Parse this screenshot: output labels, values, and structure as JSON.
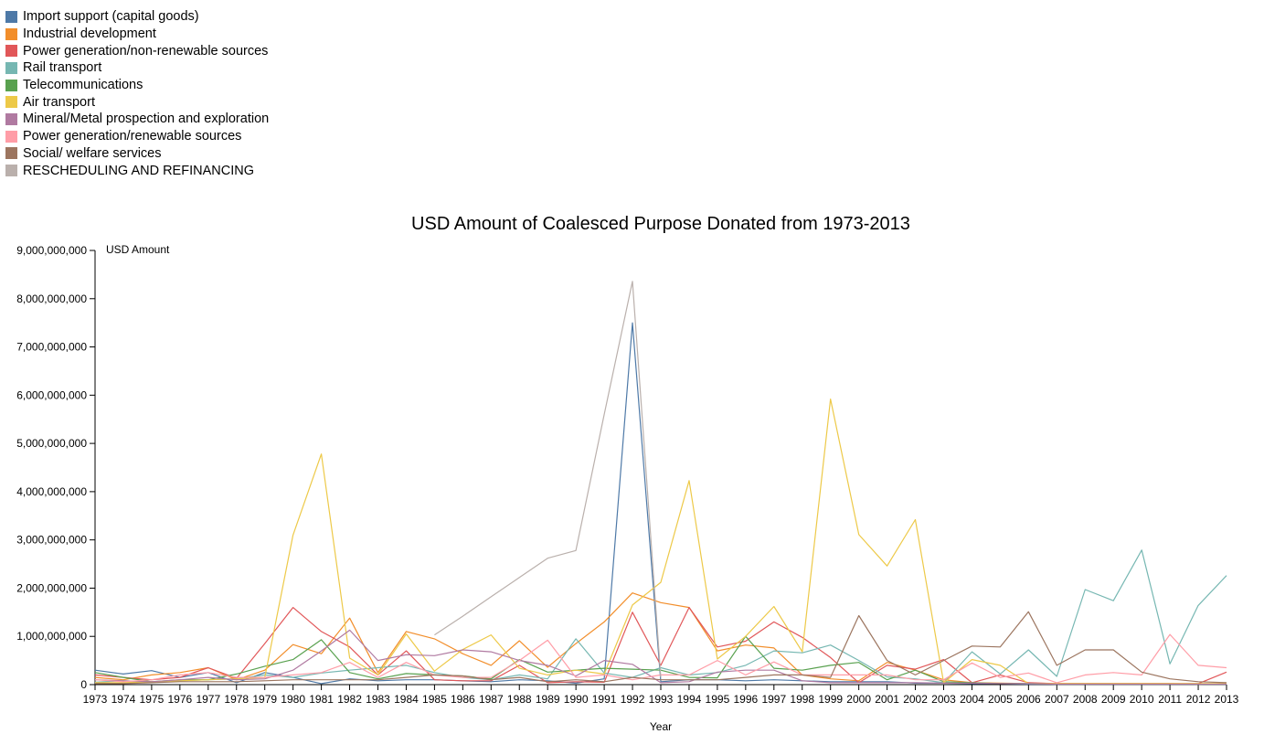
{
  "chart_data": {
    "type": "line",
    "title": "USD Amount of Coalesced Purpose Donated from 1973-2013",
    "xlabel": "Year",
    "ylabel": "USD Amount",
    "ylim": [
      0,
      9000000000
    ],
    "yticks": [
      0,
      1000000000,
      2000000000,
      3000000000,
      4000000000,
      5000000000,
      6000000000,
      7000000000,
      8000000000,
      9000000000
    ],
    "legend_position": "top-left",
    "x": [
      1973,
      1974,
      1975,
      1976,
      1977,
      1978,
      1979,
      1980,
      1981,
      1982,
      1983,
      1984,
      1985,
      1986,
      1987,
      1988,
      1989,
      1990,
      1991,
      1992,
      1993,
      1994,
      1995,
      1996,
      1997,
      1998,
      1999,
      2000,
      2001,
      2002,
      2003,
      2004,
      2005,
      2006,
      2007,
      2008,
      2009,
      2010,
      2011,
      2012,
      2013
    ],
    "series": [
      {
        "name": "Import support (capital goods)",
        "color": "#4e79a7",
        "values": [
          300000000,
          220000000,
          290000000,
          150000000,
          250000000,
          40000000,
          250000000,
          150000000,
          20000000,
          120000000,
          80000000,
          100000000,
          100000000,
          80000000,
          60000000,
          100000000,
          80000000,
          30000000,
          120000000,
          7500000000,
          60000000,
          100000000,
          100000000,
          80000000,
          100000000,
          80000000,
          60000000,
          60000000,
          60000000,
          30000000,
          30000000,
          20000000,
          20000000,
          10000000,
          10000000,
          10000000,
          10000000,
          10000000,
          10000000,
          10000000,
          10000000
        ]
      },
      {
        "name": "Industrial development",
        "color": "#f28e2b",
        "values": [
          150000000,
          100000000,
          200000000,
          250000000,
          350000000,
          100000000,
          300000000,
          830000000,
          640000000,
          1380000000,
          250000000,
          1100000000,
          950000000,
          640000000,
          400000000,
          910000000,
          360000000,
          850000000,
          1300000000,
          1900000000,
          1700000000,
          1600000000,
          700000000,
          820000000,
          760000000,
          200000000,
          120000000,
          80000000,
          460000000,
          300000000,
          100000000,
          40000000,
          30000000,
          20000000,
          20000000,
          20000000,
          20000000,
          20000000,
          20000000,
          10000000,
          20000000
        ]
      },
      {
        "name": "Power generation/non-renewable sources",
        "color": "#e15759",
        "values": [
          200000000,
          150000000,
          100000000,
          150000000,
          350000000,
          130000000,
          850000000,
          1600000000,
          1100000000,
          780000000,
          200000000,
          700000000,
          100000000,
          80000000,
          80000000,
          400000000,
          40000000,
          60000000,
          50000000,
          1500000000,
          400000000,
          1600000000,
          780000000,
          900000000,
          1300000000,
          980000000,
          560000000,
          40000000,
          400000000,
          320000000,
          520000000,
          40000000,
          200000000,
          40000000,
          20000000,
          20000000,
          20000000,
          20000000,
          20000000,
          20000000,
          260000000
        ]
      },
      {
        "name": "Rail transport",
        "color": "#76b7b2",
        "values": [
          50000000,
          80000000,
          60000000,
          80000000,
          100000000,
          120000000,
          200000000,
          150000000,
          240000000,
          300000000,
          350000000,
          400000000,
          250000000,
          150000000,
          100000000,
          200000000,
          120000000,
          950000000,
          240000000,
          150000000,
          350000000,
          200000000,
          250000000,
          400000000,
          700000000,
          660000000,
          820000000,
          500000000,
          160000000,
          120000000,
          40000000,
          680000000,
          220000000,
          720000000,
          170000000,
          1970000000,
          1740000000,
          2790000000,
          430000000,
          1640000000,
          2260000000
        ]
      },
      {
        "name": "Telecommunications",
        "color": "#59a14f",
        "values": [
          250000000,
          150000000,
          60000000,
          100000000,
          100000000,
          220000000,
          380000000,
          520000000,
          930000000,
          250000000,
          120000000,
          230000000,
          200000000,
          180000000,
          120000000,
          520000000,
          260000000,
          300000000,
          340000000,
          320000000,
          300000000,
          150000000,
          140000000,
          1000000000,
          340000000,
          300000000,
          400000000,
          460000000,
          100000000,
          300000000,
          60000000,
          40000000,
          20000000,
          20000000,
          10000000,
          10000000,
          10000000,
          10000000,
          10000000,
          10000000,
          10000000
        ]
      },
      {
        "name": "Air transport",
        "color": "#edc948",
        "values": [
          40000000,
          40000000,
          60000000,
          80000000,
          100000000,
          120000000,
          150000000,
          3100000000,
          4780000000,
          550000000,
          200000000,
          1050000000,
          280000000,
          730000000,
          1030000000,
          340000000,
          200000000,
          300000000,
          220000000,
          1650000000,
          2120000000,
          4230000000,
          530000000,
          1000000000,
          1620000000,
          680000000,
          5920000000,
          3110000000,
          2460000000,
          3420000000,
          40000000,
          520000000,
          400000000,
          20000000,
          20000000,
          20000000,
          20000000,
          20000000,
          20000000,
          20000000,
          20000000
        ]
      },
      {
        "name": "Mineral/Metal prospection and exploration",
        "color": "#b07aa1",
        "values": [
          100000000,
          80000000,
          60000000,
          100000000,
          150000000,
          100000000,
          120000000,
          300000000,
          700000000,
          1130000000,
          500000000,
          620000000,
          600000000,
          720000000,
          680000000,
          500000000,
          400000000,
          180000000,
          500000000,
          420000000,
          40000000,
          60000000,
          260000000,
          300000000,
          300000000,
          80000000,
          40000000,
          40000000,
          40000000,
          40000000,
          30000000,
          30000000,
          20000000,
          20000000,
          10000000,
          10000000,
          10000000,
          10000000,
          10000000,
          10000000,
          10000000
        ]
      },
      {
        "name": "Power generation/renewable sources",
        "color": "#ff9da7",
        "values": [
          100000000,
          60000000,
          100000000,
          200000000,
          250000000,
          150000000,
          150000000,
          200000000,
          250000000,
          460000000,
          150000000,
          460000000,
          200000000,
          150000000,
          150000000,
          500000000,
          920000000,
          150000000,
          200000000,
          100000000,
          200000000,
          200000000,
          500000000,
          200000000,
          470000000,
          200000000,
          200000000,
          200000000,
          200000000,
          100000000,
          100000000,
          450000000,
          150000000,
          240000000,
          40000000,
          200000000,
          250000000,
          200000000,
          1040000000,
          400000000,
          350000000
        ]
      },
      {
        "name": "Social/ welfare services",
        "color": "#9c755f",
        "values": [
          20000000,
          20000000,
          40000000,
          60000000,
          60000000,
          60000000,
          80000000,
          100000000,
          100000000,
          100000000,
          100000000,
          150000000,
          200000000,
          180000000,
          100000000,
          150000000,
          60000000,
          100000000,
          60000000,
          150000000,
          100000000,
          100000000,
          100000000,
          150000000,
          200000000,
          200000000,
          150000000,
          1430000000,
          500000000,
          200000000,
          500000000,
          800000000,
          780000000,
          1510000000,
          400000000,
          720000000,
          720000000,
          260000000,
          120000000,
          60000000,
          40000000
        ]
      },
      {
        "name": "RESCHEDULING AND REFINANCING",
        "color": "#bab0ac",
        "values": [
          null,
          null,
          null,
          null,
          null,
          null,
          null,
          null,
          null,
          null,
          null,
          null,
          1030000000,
          1420000000,
          1820000000,
          2220000000,
          2620000000,
          2780000000,
          5600000000,
          8360000000,
          150000000,
          null,
          null,
          null,
          null,
          null,
          null,
          null,
          null,
          null,
          null,
          null,
          null,
          null,
          null,
          null,
          null,
          null,
          null,
          null,
          null
        ]
      }
    ]
  }
}
